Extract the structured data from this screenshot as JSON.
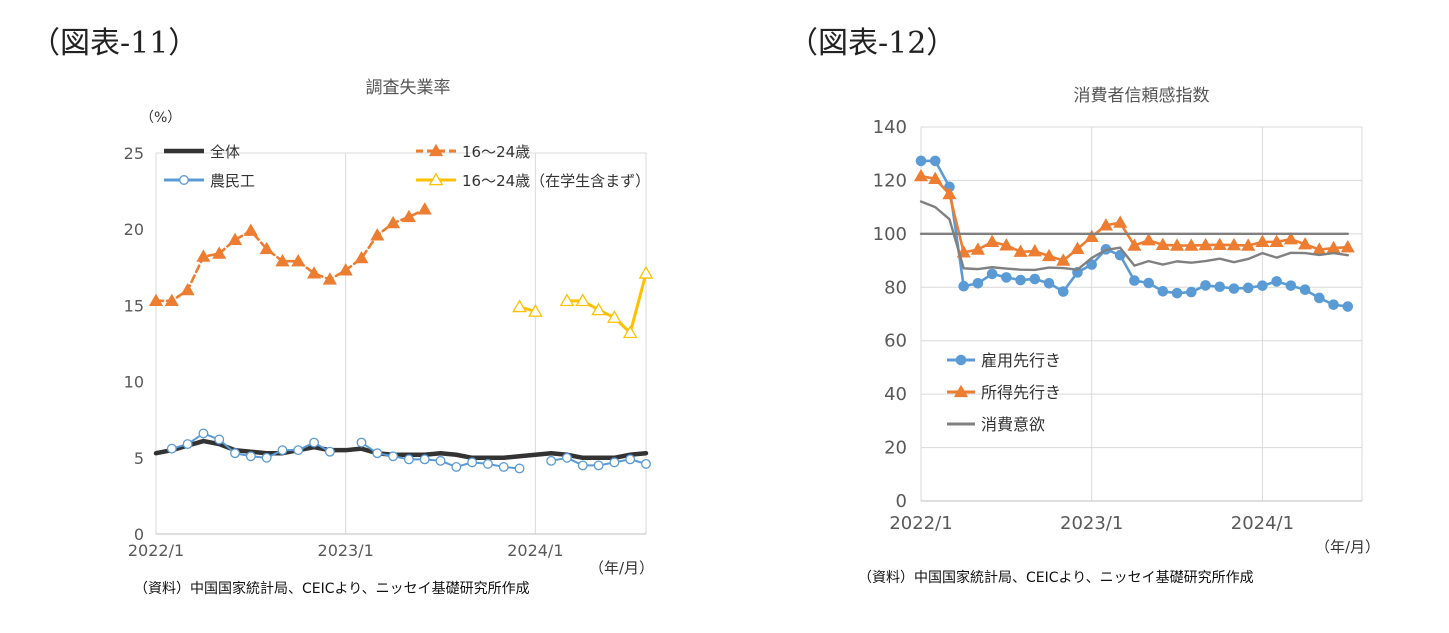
{
  "figure_labels": {
    "fig11": "（図表-11）",
    "fig12": "（図表-12）"
  },
  "sources": {
    "fig11": "（資料）中国国家統計局、CEICより、ニッセイ基礎研究所作成",
    "fig12": "（資料）中国国家統計局、CEICより、ニッセイ基礎研究所作成"
  },
  "chart_data": [
    {
      "type": "line",
      "title": "調査失業率",
      "ylabel": "（%）",
      "xlabel": "（年/月）",
      "ylim": [
        0,
        25
      ],
      "yticks": [
        "0",
        "5",
        "10",
        "15",
        "20",
        "25"
      ],
      "x_range": [
        "2022/1",
        "2024/8"
      ],
      "x_ticks": [
        "2022/1",
        "2023/1",
        "2024/1"
      ],
      "grid": "vertical",
      "legend_position": "top",
      "series": [
        {
          "name": "全体",
          "color": "#333333",
          "style": "solid-thick",
          "start": "2022/1",
          "values": [
            5.3,
            5.5,
            5.8,
            6.1,
            5.9,
            5.5,
            5.4,
            5.3,
            5.3,
            5.5,
            5.7,
            5.5,
            5.5,
            5.6,
            5.3,
            5.2,
            5.2,
            5.2,
            5.3,
            5.2,
            5.0,
            5.0,
            5.0,
            5.1,
            5.2,
            5.3,
            5.2,
            5.0,
            5.0,
            5.0,
            5.2,
            5.3
          ]
        },
        {
          "name": "農民工",
          "color": "#5b9bd5",
          "style": "solid-circle",
          "start": "2022/1",
          "values": [
            null,
            5.6,
            5.9,
            6.6,
            6.2,
            5.3,
            5.1,
            5.0,
            5.5,
            5.5,
            6.0,
            5.4,
            null,
            6.0,
            5.3,
            5.1,
            4.9,
            4.9,
            4.8,
            4.4,
            4.7,
            4.6,
            4.4,
            4.3,
            null,
            4.8,
            5.0,
            4.5,
            4.5,
            4.7,
            4.9,
            4.6
          ]
        },
        {
          "name": "16～24歳",
          "color": "#ed7d31",
          "style": "dashed-triangle",
          "start": "2022/1",
          "values": [
            15.3,
            15.3,
            16.0,
            18.2,
            18.4,
            19.3,
            19.9,
            18.7,
            17.9,
            17.9,
            17.1,
            16.7,
            17.3,
            18.1,
            19.6,
            20.4,
            20.8,
            21.3
          ]
        },
        {
          "name": "16～24歳（在学生含まず）",
          "color": "#ffc000",
          "style": "solid-hollow-triangle",
          "start": "2023/12",
          "values": [
            14.9,
            14.6,
            null,
            15.3,
            15.3,
            14.7,
            14.2,
            13.2,
            17.1
          ]
        }
      ]
    },
    {
      "type": "line",
      "title": "消費者信頼感指数",
      "xlabel": "（年/月）",
      "ylim": [
        0,
        140
      ],
      "yticks": [
        "0",
        "20",
        "40",
        "60",
        "80",
        "100",
        "120",
        "140"
      ],
      "x_range": [
        "2022/1",
        "2024/8"
      ],
      "x_ticks": [
        "2022/1",
        "2023/1",
        "2024/1"
      ],
      "grid": "both",
      "legend_position": "center-left",
      "series": [
        {
          "name": "雇用先行き",
          "color": "#5b9bd5",
          "style": "circle",
          "start": "2022/1",
          "values": [
            127.3,
            127.3,
            117.6,
            80.4,
            81.5,
            85.0,
            83.7,
            82.7,
            83.1,
            81.5,
            78.4,
            85.6,
            88.5,
            94.2,
            92.0,
            82.5,
            81.6,
            78.5,
            77.8,
            78.2,
            80.7,
            80.2,
            79.5,
            79.8,
            80.6,
            82.2,
            80.6,
            79.1,
            76.0,
            73.5,
            72.8
          ]
        },
        {
          "name": "所得先行き",
          "color": "#ed7d31",
          "style": "triangle",
          "start": "2022/1",
          "values": [
            121.6,
            120.6,
            114.9,
            93.1,
            94.1,
            97.0,
            95.7,
            93.3,
            93.5,
            91.7,
            90.0,
            94.4,
            98.9,
            103.2,
            104.2,
            95.6,
            97.6,
            95.9,
            95.6,
            95.6,
            95.8,
            95.9,
            95.8,
            95.6,
            97.0,
            97.0,
            98.0,
            96.1,
            94.1,
            94.7,
            95.0
          ]
        },
        {
          "name": "消費意欲",
          "color": "#808080",
          "style": "solid",
          "start": "2022/1",
          "values": [
            112.1,
            110.0,
            105.5,
            87.1,
            86.8,
            87.5,
            87.0,
            86.6,
            86.5,
            87.4,
            87.2,
            86.6,
            91.0,
            94.0,
            94.8,
            88.1,
            89.8,
            88.5,
            89.7,
            89.2,
            89.8,
            90.7,
            89.4,
            90.6,
            92.8,
            91.1,
            92.9,
            92.8,
            92.1,
            92.8,
            92.0
          ]
        },
        {
          "name": "",
          "color": "#808080",
          "style": "reference",
          "start": "2022/1",
          "values": [
            100,
            100,
            100,
            100,
            100,
            100,
            100,
            100,
            100,
            100,
            100,
            100,
            100,
            100,
            100,
            100,
            100,
            100,
            100,
            100,
            100,
            100,
            100,
            100,
            100,
            100,
            100,
            100,
            100,
            100,
            100
          ]
        }
      ]
    }
  ]
}
